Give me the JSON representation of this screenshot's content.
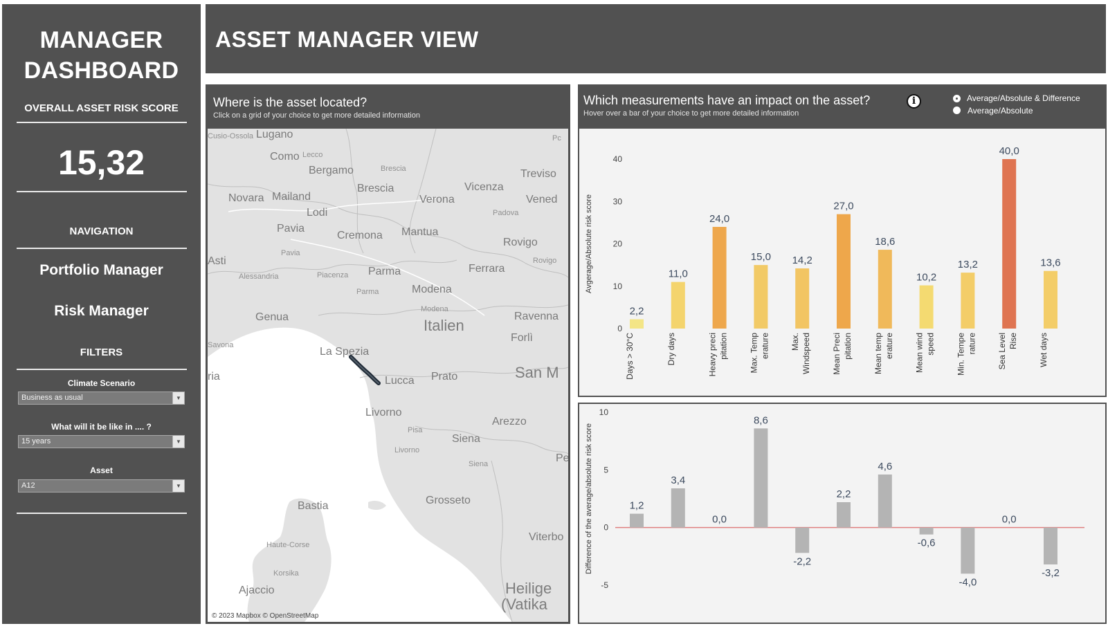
{
  "sidebar": {
    "title": "MANAGER DASHBOARD",
    "score_label": "OVERALL ASSET RISK SCORE",
    "score_value": "15,32",
    "nav_label": "NAVIGATION",
    "nav_items": [
      {
        "label": "Portfolio Manager"
      },
      {
        "label": "Risk Manager"
      }
    ],
    "filters_label": "FILTERS",
    "filters": [
      {
        "label": "Climate Scenario",
        "value": "Business as usual"
      },
      {
        "label": "What will it be like in .... ?",
        "value": "15 years"
      },
      {
        "label": "Asset",
        "value": "A12"
      }
    ]
  },
  "header": {
    "title": "ASSET MANAGER VIEW"
  },
  "map": {
    "title": "Where is the asset located?",
    "subtitle": "Click on a grid of your choice to get more detailed information",
    "attribution": "© 2023 Mapbox © OpenStreetMap",
    "labels": [
      {
        "name": "Cusio-Ossola",
        "size": "small"
      },
      {
        "name": "Lugano",
        "size": "normal"
      },
      {
        "name": "Como",
        "size": "normal"
      },
      {
        "name": "Lecco",
        "size": "small"
      },
      {
        "name": "Bergamo",
        "size": "normal"
      },
      {
        "name": "Brescia",
        "size": "normal"
      },
      {
        "name": "Brescia",
        "size": "small"
      },
      {
        "name": "Vicenza",
        "size": "normal"
      },
      {
        "name": "Treviso",
        "size": "normal"
      },
      {
        "name": "Pc",
        "size": "small"
      },
      {
        "name": "Novara",
        "size": "normal"
      },
      {
        "name": "Mailand",
        "size": "normal"
      },
      {
        "name": "Verona",
        "size": "normal"
      },
      {
        "name": "Vened",
        "size": "normal"
      },
      {
        "name": "Padova",
        "size": "small"
      },
      {
        "name": "Lodi",
        "size": "normal"
      },
      {
        "name": "Pavia",
        "size": "normal"
      },
      {
        "name": "Cremona",
        "size": "normal"
      },
      {
        "name": "Mantua",
        "size": "normal"
      },
      {
        "name": "Rovigo",
        "size": "normal"
      },
      {
        "name": "Rovigo",
        "size": "small"
      },
      {
        "name": "Pavia",
        "size": "small"
      },
      {
        "name": "Asti",
        "size": "normal"
      },
      {
        "name": "Parma",
        "size": "normal"
      },
      {
        "name": "Ferrara",
        "size": "normal"
      },
      {
        "name": "Alessandria",
        "size": "small"
      },
      {
        "name": "Piacenza",
        "size": "small"
      },
      {
        "name": "Modena",
        "size": "normal"
      },
      {
        "name": "Parma",
        "size": "small"
      },
      {
        "name": "Modena",
        "size": "small"
      },
      {
        "name": "Genua",
        "size": "normal"
      },
      {
        "name": "Italien",
        "size": "big"
      },
      {
        "name": "Ravenna",
        "size": "normal"
      },
      {
        "name": "Forlì",
        "size": "normal"
      },
      {
        "name": "Savona",
        "size": "small"
      },
      {
        "name": "La Spezia",
        "size": "normal"
      },
      {
        "name": "Lucca",
        "size": "normal"
      },
      {
        "name": "Prato",
        "size": "normal"
      },
      {
        "name": "San M",
        "size": "big"
      },
      {
        "name": "ria",
        "size": "normal"
      },
      {
        "name": "Livorno",
        "size": "normal"
      },
      {
        "name": "Pisa",
        "size": "small"
      },
      {
        "name": "Arezzo",
        "size": "normal"
      },
      {
        "name": "Livorno",
        "size": "small"
      },
      {
        "name": "Siena",
        "size": "normal"
      },
      {
        "name": "Perug",
        "size": "normal"
      },
      {
        "name": "Siena",
        "size": "small"
      },
      {
        "name": "Bastia",
        "size": "normal"
      },
      {
        "name": "Grosseto",
        "size": "normal"
      },
      {
        "name": "Haute-Corse",
        "size": "small"
      },
      {
        "name": "Viterbo",
        "size": "normal"
      },
      {
        "name": "Korsika",
        "size": "small"
      },
      {
        "name": "Ajaccio",
        "size": "normal"
      },
      {
        "name": "Heilige",
        "size": "big"
      },
      {
        "name": "(Vatika",
        "size": "big"
      }
    ]
  },
  "impact": {
    "title": "Which measurements have an impact on the asset?",
    "subtitle": "Hover over a bar of your choice to get more detailed information",
    "info_icon": "info-icon",
    "options": [
      {
        "label": "Average/Absolute & Difference",
        "selected": true
      },
      {
        "label": "Average/Absolute",
        "selected": false
      }
    ]
  },
  "chart_data": [
    {
      "type": "bar",
      "ylabel": "Avgerage/Absolute risk score",
      "xlabel": "",
      "ylim": [
        0,
        40
      ],
      "yticks": [
        "0",
        "10",
        "20",
        "30",
        "40"
      ],
      "categories": [
        [
          "Days > 30°C"
        ],
        [
          "Dry days"
        ],
        [
          "Heavy preci",
          "pitation"
        ],
        [
          "Max. Temp",
          "erature"
        ],
        [
          "Max.",
          "Windspeed"
        ],
        [
          "Mean Preci",
          "pitation"
        ],
        [
          "Mean temp",
          "erature"
        ],
        [
          "Mean wind",
          "speed"
        ],
        [
          "Min. Tempe",
          "rature"
        ],
        [
          "Sea Level",
          "Rise"
        ],
        [
          "Wet days"
        ]
      ],
      "values": [
        2.2,
        11.0,
        24.0,
        15.0,
        14.2,
        27.0,
        18.6,
        10.2,
        13.2,
        40.0,
        13.6
      ],
      "value_labels": [
        "2,2",
        "11,0",
        "24,0",
        "15,0",
        "14,2",
        "27,0",
        "18,6",
        "10,2",
        "13,2",
        "40,0",
        "13,6"
      ],
      "colors": [
        "#f3e586",
        "#f4d46d",
        "#eea74c",
        "#f2ca66",
        "#f2c563",
        "#eea74b",
        "#f0b95a",
        "#f4da71",
        "#f3cd68",
        "#df7451",
        "#f3cd68"
      ]
    },
    {
      "type": "bar",
      "ylabel": "Difference of the average/absolute risk score",
      "xlabel": "",
      "ylim": [
        -5,
        10
      ],
      "yticks": [
        "-5",
        "0",
        "5",
        "10"
      ],
      "values": [
        1.2,
        3.4,
        0.0,
        8.6,
        -2.2,
        2.2,
        4.6,
        -0.6,
        -4.0,
        0.0,
        -3.2
      ],
      "value_labels": [
        "1,2",
        "3,4",
        "0,0",
        "8,6",
        "-2,2",
        "2,2",
        "4,6",
        "-0,6",
        "-4,0",
        "0,0",
        "-3,2"
      ],
      "bar_color": "#b4b4b4",
      "zero_line_color": "#e07f7f"
    }
  ]
}
